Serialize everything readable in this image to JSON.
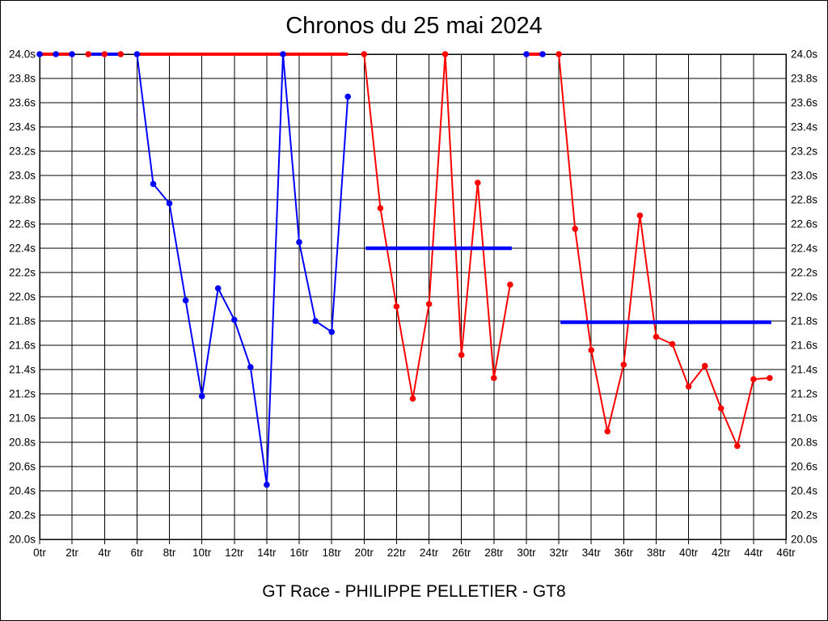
{
  "window": {
    "title": "Chronos du 25 mai 2024",
    "footer": "GT Race - PHILIPPE PELLETIER - GT8"
  },
  "chart_data": {
    "type": "line",
    "title": "Chronos du 25 mai 2024",
    "subtitle": "GT Race - PHILIPPE PELLETIER - GT8",
    "x_unit": "tr",
    "y_unit": "s",
    "xlim": [
      0,
      46
    ],
    "ylim": [
      20.0,
      24.0
    ],
    "x_tick_step": 2,
    "y_tick_step": 0.2,
    "grid": true,
    "axis_color": "#000000",
    "background_color": "#ffffff",
    "red_color": "#ff0000",
    "blue_color": "#0000ff",
    "marker_radius": 3.8,
    "y_axis_sides": [
      "left",
      "right"
    ],
    "series": [
      {
        "name": "blue-line-under-red-pit-laps",
        "color": "#0000ff",
        "segments": [
          {
            "x": [
              3,
              4,
              5
            ],
            "y": [
              24.0,
              24.0,
              24.0
            ],
            "width": 4,
            "line": true,
            "markers": false
          }
        ]
      },
      {
        "name": "red-driver-laps",
        "color": "#ff0000",
        "segments": [
          {
            "x": [
              0,
              1,
              2
            ],
            "y": [
              24.0,
              24.0,
              24.0
            ],
            "width": 4,
            "line": true,
            "markers": false
          },
          {
            "x": [
              3,
              4,
              5
            ],
            "y": [
              24.0,
              24.0,
              24.0
            ],
            "width": 2,
            "line": false,
            "markers": true
          },
          {
            "x": [
              6,
              19
            ],
            "y": [
              24.0,
              24.0
            ],
            "width": 4,
            "line": true,
            "markers": false
          },
          {
            "x": [
              20,
              21,
              22,
              23,
              24,
              25,
              26,
              27,
              28,
              29
            ],
            "y": [
              24.0,
              22.73,
              21.92,
              21.16,
              21.94,
              24.0,
              21.52,
              22.94,
              21.33,
              22.1
            ],
            "width": 2,
            "line": true,
            "markers": true
          },
          {
            "x": [
              30,
              31
            ],
            "y": [
              24.0,
              24.0
            ],
            "width": 4,
            "line": true,
            "markers": false
          },
          {
            "x": [
              32,
              33,
              34,
              35,
              36,
              37,
              38,
              39,
              40,
              41,
              42,
              43,
              44,
              45
            ],
            "y": [
              24.0,
              22.56,
              21.56,
              20.89,
              21.44,
              22.67,
              21.67,
              21.61,
              21.26,
              21.43,
              21.08,
              20.77,
              21.32,
              21.33
            ],
            "width": 2,
            "line": true,
            "markers": true
          }
        ]
      },
      {
        "name": "blue-driver-laps",
        "color": "#0000ff",
        "segments": [
          {
            "x": [
              0,
              1,
              2
            ],
            "y": [
              24.0,
              24.0,
              24.0
            ],
            "width": 2,
            "line": false,
            "markers": true
          },
          {
            "x": [
              6,
              7,
              8,
              9,
              10,
              11,
              12,
              13,
              14,
              15,
              16,
              17,
              18,
              19
            ],
            "y": [
              24.0,
              22.93,
              22.77,
              21.97,
              21.18,
              22.07,
              21.81,
              21.42,
              20.45,
              24.0,
              22.45,
              21.8,
              21.71,
              23.65
            ],
            "width": 2,
            "line": true,
            "markers": true
          },
          {
            "x": [
              30,
              31
            ],
            "y": [
              24.0,
              24.0
            ],
            "width": 2,
            "line": false,
            "markers": true
          }
        ]
      },
      {
        "name": "stint-average-lines",
        "color": "#0000ff",
        "segments": [
          {
            "x": [
              20.1,
              29.1
            ],
            "y": [
              22.4,
              22.4
            ],
            "width": 4.5,
            "line": true,
            "markers": false
          },
          {
            "x": [
              32.1,
              45.1
            ],
            "y": [
              21.79,
              21.79
            ],
            "width": 4.5,
            "line": true,
            "markers": false
          }
        ]
      }
    ]
  }
}
